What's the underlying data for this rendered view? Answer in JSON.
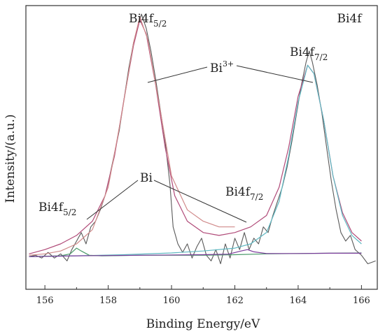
{
  "chart_data": {
    "type": "line",
    "title": "",
    "xlabel": "Binding Energy/eV",
    "ylabel": "Intensity/(a.u.)",
    "corner_label": "Bi4f",
    "xlim": [
      155.4,
      166.5
    ],
    "ylim": [
      0,
      1.0
    ],
    "x_ticks": [
      156,
      158,
      160,
      162,
      164,
      166
    ],
    "y_ticks_visible": false,
    "grid": false,
    "legend": "none",
    "annotations": [
      {
        "id": "bi4f52-major",
        "base": "Bi4f",
        "sub": "5/2",
        "sup": ""
      },
      {
        "id": "bi4f72-major",
        "base": "Bi4f",
        "sub": "7/2",
        "sup": ""
      },
      {
        "id": "bi3plus",
        "base": "Bi",
        "sub": "",
        "sup": "3+"
      },
      {
        "id": "bi-metal",
        "base": "Bi",
        "sub": "",
        "sup": ""
      },
      {
        "id": "bi4f52-minor",
        "base": "Bi4f",
        "sub": "5/2",
        "sup": ""
      },
      {
        "id": "bi4f72-minor",
        "base": "Bi4f",
        "sub": "7/2",
        "sup": ""
      }
    ],
    "series": [
      {
        "color": "#5a5a5a",
        "points": [
          [
            155.5,
            0.115
          ],
          [
            155.7,
            0.12
          ],
          [
            155.9,
            0.11
          ],
          [
            156.1,
            0.13
          ],
          [
            156.3,
            0.11
          ],
          [
            156.5,
            0.125
          ],
          [
            156.7,
            0.1
          ],
          [
            156.85,
            0.14
          ],
          [
            157.0,
            0.17
          ],
          [
            157.15,
            0.2
          ],
          [
            157.3,
            0.16
          ],
          [
            157.45,
            0.22
          ],
          [
            157.6,
            0.24
          ],
          [
            157.75,
            0.28
          ],
          [
            157.9,
            0.33
          ],
          [
            158.05,
            0.4
          ],
          [
            158.2,
            0.48
          ],
          [
            158.35,
            0.56
          ],
          [
            158.5,
            0.67
          ],
          [
            158.65,
            0.78
          ],
          [
            158.8,
            0.87
          ],
          [
            158.95,
            0.93
          ],
          [
            159.05,
            0.97
          ],
          [
            159.2,
            0.92
          ],
          [
            159.35,
            0.84
          ],
          [
            159.5,
            0.74
          ],
          [
            159.65,
            0.63
          ],
          [
            159.8,
            0.52
          ],
          [
            159.95,
            0.37
          ],
          [
            160.05,
            0.22
          ],
          [
            160.2,
            0.16
          ],
          [
            160.35,
            0.13
          ],
          [
            160.5,
            0.16
          ],
          [
            160.65,
            0.11
          ],
          [
            160.8,
            0.15
          ],
          [
            160.95,
            0.18
          ],
          [
            161.1,
            0.12
          ],
          [
            161.25,
            0.1
          ],
          [
            161.4,
            0.14
          ],
          [
            161.55,
            0.09
          ],
          [
            161.7,
            0.16
          ],
          [
            161.85,
            0.11
          ],
          [
            162.0,
            0.18
          ],
          [
            162.15,
            0.14
          ],
          [
            162.3,
            0.2
          ],
          [
            162.45,
            0.14
          ],
          [
            162.6,
            0.18
          ],
          [
            162.75,
            0.16
          ],
          [
            162.9,
            0.22
          ],
          [
            163.05,
            0.2
          ],
          [
            163.2,
            0.26
          ],
          [
            163.35,
            0.31
          ],
          [
            163.5,
            0.36
          ],
          [
            163.65,
            0.43
          ],
          [
            163.8,
            0.52
          ],
          [
            163.95,
            0.62
          ],
          [
            164.1,
            0.72
          ],
          [
            164.25,
            0.8
          ],
          [
            164.35,
            0.84
          ],
          [
            164.45,
            0.8
          ],
          [
            164.6,
            0.72
          ],
          [
            164.75,
            0.62
          ],
          [
            164.9,
            0.5
          ],
          [
            165.05,
            0.38
          ],
          [
            165.2,
            0.28
          ],
          [
            165.35,
            0.2
          ],
          [
            165.5,
            0.17
          ],
          [
            165.65,
            0.19
          ],
          [
            165.8,
            0.14
          ],
          [
            166.0,
            0.12
          ],
          [
            166.2,
            0.09
          ],
          [
            166.45,
            0.1
          ]
        ]
      },
      {
        "color": "#b04a78",
        "points": [
          [
            155.5,
            0.125
          ],
          [
            156.0,
            0.14
          ],
          [
            156.5,
            0.16
          ],
          [
            157.0,
            0.19
          ],
          [
            157.5,
            0.24
          ],
          [
            157.9,
            0.33
          ],
          [
            158.2,
            0.47
          ],
          [
            158.5,
            0.67
          ],
          [
            158.8,
            0.86
          ],
          [
            159.0,
            0.95
          ],
          [
            159.2,
            0.9
          ],
          [
            159.5,
            0.72
          ],
          [
            159.8,
            0.5
          ],
          [
            160.1,
            0.33
          ],
          [
            160.5,
            0.24
          ],
          [
            161.0,
            0.2
          ],
          [
            161.5,
            0.19
          ],
          [
            162.0,
            0.2
          ],
          [
            162.5,
            0.22
          ],
          [
            163.0,
            0.26
          ],
          [
            163.4,
            0.36
          ],
          [
            163.7,
            0.5
          ],
          [
            164.0,
            0.68
          ],
          [
            164.3,
            0.79
          ],
          [
            164.5,
            0.76
          ],
          [
            164.8,
            0.6
          ],
          [
            165.1,
            0.4
          ],
          [
            165.4,
            0.27
          ],
          [
            165.7,
            0.2
          ],
          [
            166.0,
            0.17
          ]
        ]
      },
      {
        "color": "#d08a8a",
        "points": [
          [
            155.5,
            0.12
          ],
          [
            156.0,
            0.125
          ],
          [
            156.5,
            0.135
          ],
          [
            157.0,
            0.16
          ],
          [
            157.5,
            0.21
          ],
          [
            158.0,
            0.36
          ],
          [
            158.4,
            0.6
          ],
          [
            158.8,
            0.87
          ],
          [
            159.0,
            0.96
          ],
          [
            159.25,
            0.88
          ],
          [
            159.6,
            0.66
          ],
          [
            160.0,
            0.4
          ],
          [
            160.5,
            0.28
          ],
          [
            161.0,
            0.24
          ],
          [
            161.5,
            0.22
          ],
          [
            162.0,
            0.22
          ]
        ]
      },
      {
        "color": "#5fb8c2",
        "points": [
          [
            155.5,
            0.115
          ],
          [
            157.0,
            0.118
          ],
          [
            158.5,
            0.122
          ],
          [
            160.0,
            0.128
          ],
          [
            161.0,
            0.135
          ],
          [
            162.0,
            0.145
          ],
          [
            162.5,
            0.16
          ],
          [
            163.0,
            0.2
          ],
          [
            163.4,
            0.31
          ],
          [
            163.7,
            0.47
          ],
          [
            164.0,
            0.66
          ],
          [
            164.3,
            0.79
          ],
          [
            164.5,
            0.76
          ],
          [
            164.8,
            0.6
          ],
          [
            165.1,
            0.4
          ],
          [
            165.4,
            0.26
          ],
          [
            165.7,
            0.19
          ],
          [
            166.0,
            0.16
          ]
        ]
      },
      {
        "color": "#4a9a6a",
        "points": [
          [
            155.5,
            0.115
          ],
          [
            156.5,
            0.118
          ],
          [
            156.8,
            0.125
          ],
          [
            157.0,
            0.145
          ],
          [
            157.15,
            0.135
          ],
          [
            157.4,
            0.12
          ],
          [
            157.8,
            0.118
          ],
          [
            159.0,
            0.12
          ],
          [
            161.0,
            0.12
          ],
          [
            162.0,
            0.122
          ],
          [
            163.0,
            0.125
          ],
          [
            164.0,
            0.126
          ],
          [
            165.0,
            0.127
          ],
          [
            166.0,
            0.128
          ]
        ]
      },
      {
        "color": "#7a3a9a",
        "points": [
          [
            155.5,
            0.115
          ],
          [
            157.0,
            0.118
          ],
          [
            159.0,
            0.12
          ],
          [
            161.0,
            0.122
          ],
          [
            161.8,
            0.124
          ],
          [
            162.2,
            0.135
          ],
          [
            162.4,
            0.14
          ],
          [
            162.6,
            0.132
          ],
          [
            163.0,
            0.126
          ],
          [
            164.0,
            0.126
          ],
          [
            165.0,
            0.127
          ],
          [
            166.0,
            0.127
          ]
        ]
      }
    ]
  }
}
